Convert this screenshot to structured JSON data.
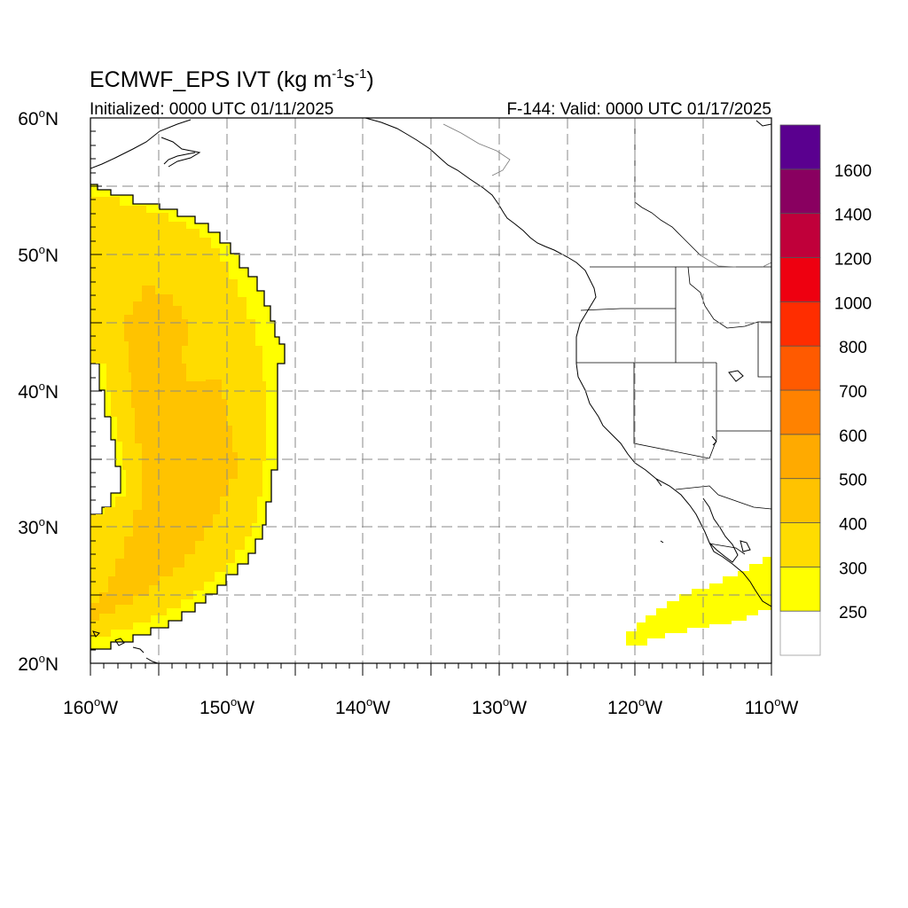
{
  "title": {
    "main": "ECMWF_EPS IVT (kg m",
    "sup1": "-1",
    "mid": "s",
    "sup2": "-1",
    "close": ")"
  },
  "init_label": "Initialized: 0000 UTC 01/11/2025",
  "valid_label": "F-144: Valid: 0000 UTC 01/17/2025",
  "lat_labels": [
    "60",
    "50",
    "40",
    "30",
    "20"
  ],
  "lon_labels": [
    "160",
    "150",
    "140",
    "130",
    "120",
    "110"
  ],
  "lat_suffix": "N",
  "lon_suffix": "W",
  "degree_symbol": "o",
  "map_extent": {
    "lon_min": -160,
    "lon_max": -110,
    "lat_min": 20,
    "lat_max": 60
  },
  "colorbar": {
    "labels": [
      "250",
      "300",
      "400",
      "500",
      "600",
      "700",
      "800",
      "1000",
      "1200",
      "1400",
      "1600"
    ],
    "colors": [
      "#ffffff",
      "#ffff00",
      "#ffdc00",
      "#ffc300",
      "#ffaa00",
      "#ff8200",
      "#ff5a00",
      "#ff2d00",
      "#ee0010",
      "#c0003a",
      "#890060",
      "#5a008f"
    ]
  }
}
